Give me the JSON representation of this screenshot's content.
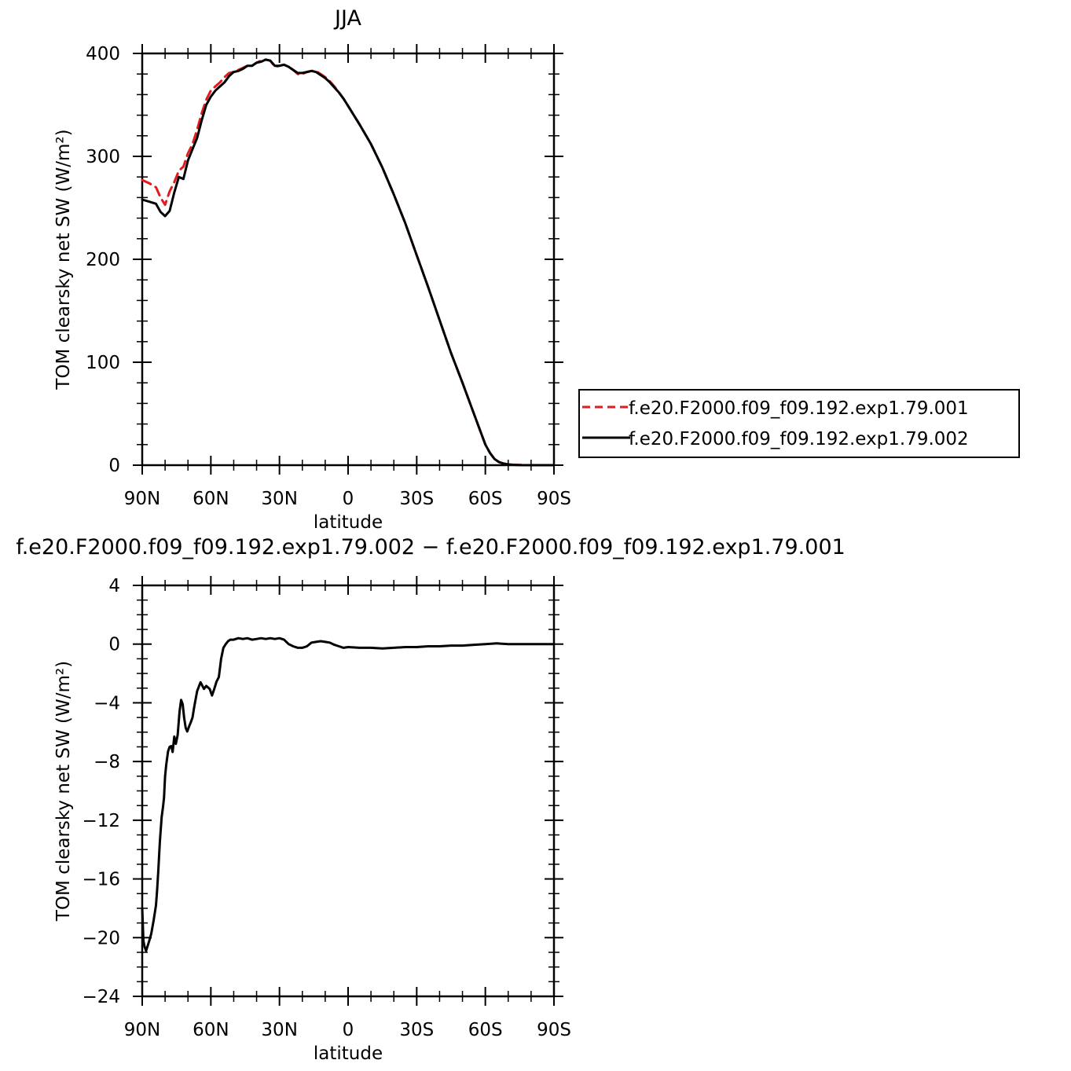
{
  "chart_data": [
    {
      "type": "line",
      "title": "JJA",
      "xlabel": "latitude",
      "ylabel": "TOM clearsky net SW (W/m²)",
      "x_ticks": [
        "90N",
        "60N",
        "30N",
        "0",
        "30S",
        "60S",
        "90S"
      ],
      "x_tick_values": [
        90,
        60,
        30,
        0,
        -30,
        -60,
        -90
      ],
      "xlim": [
        90,
        -90
      ],
      "y_ticks": [
        "0",
        "100",
        "200",
        "300",
        "400"
      ],
      "y_tick_values": [
        0,
        100,
        200,
        300,
        400
      ],
      "ylim": [
        0,
        400
      ],
      "grid": false,
      "legend_position": "right",
      "series": [
        {
          "name": "f.e20.F2000.f09_f09.192.exp1.79.001",
          "color": "#e41a1c",
          "dash": "dashed",
          "x": [
            90,
            87,
            84,
            82,
            80,
            78,
            76,
            74,
            72,
            70,
            68,
            66,
            64,
            62,
            60,
            58,
            56,
            54,
            52,
            50,
            48,
            46,
            44,
            42,
            40,
            38,
            36,
            34,
            32,
            30,
            28,
            26,
            24,
            22,
            20,
            18,
            16,
            14,
            12,
            10,
            8,
            6,
            4,
            2,
            0,
            -5,
            -10,
            -15,
            -20,
            -25,
            -30,
            -35,
            -40,
            -45,
            -50,
            -55,
            -60,
            -62,
            -64,
            -66,
            -68,
            -70,
            -72,
            -74,
            -76,
            -80,
            -85,
            -90
          ],
          "y": [
            277,
            274,
            270,
            260,
            253,
            266,
            275,
            286,
            290,
            303,
            312,
            326,
            342,
            355,
            364,
            368,
            372,
            377,
            381,
            382,
            384,
            386,
            388,
            388,
            391,
            393,
            394,
            393,
            387,
            388,
            389,
            387,
            384,
            380,
            380,
            382,
            383,
            383,
            380,
            377,
            373,
            368,
            362,
            356,
            349,
            331,
            312,
            289,
            263,
            235,
            204,
            173,
            141,
            109,
            80,
            50,
            20,
            12,
            6,
            3,
            1.5,
            0.8,
            0.4,
            0.2,
            0.1,
            0,
            0,
            0
          ]
        },
        {
          "name": "f.e20.F2000.f09_f09.192.exp1.79.002",
          "color": "#000000",
          "dash": "solid",
          "x": [
            90,
            87,
            84,
            82,
            80,
            78,
            76,
            74,
            72,
            70,
            68,
            66,
            64,
            62,
            60,
            58,
            56,
            54,
            52,
            50,
            48,
            46,
            44,
            42,
            40,
            38,
            36,
            34,
            32,
            30,
            28,
            26,
            24,
            22,
            20,
            18,
            16,
            14,
            12,
            10,
            8,
            6,
            4,
            2,
            0,
            -5,
            -10,
            -15,
            -20,
            -25,
            -30,
            -35,
            -40,
            -45,
            -50,
            -55,
            -60,
            -62,
            -64,
            -66,
            -68,
            -70,
            -72,
            -74,
            -76,
            -80,
            -85,
            -90
          ],
          "y": [
            258,
            256,
            254,
            246,
            242,
            247,
            265,
            280,
            278,
            296,
            307,
            318,
            335,
            350,
            358,
            364,
            368,
            372,
            378,
            382,
            383,
            385,
            388,
            388,
            391,
            392,
            394,
            393,
            388,
            388,
            389,
            387,
            384,
            381,
            381,
            382,
            383,
            382,
            379,
            376,
            372,
            367,
            362,
            356,
            349,
            331,
            312,
            289,
            263,
            235,
            204,
            173,
            141,
            109,
            80,
            50,
            20,
            12,
            6,
            3,
            1.5,
            0.8,
            0.4,
            0.2,
            0.1,
            0,
            0,
            0
          ]
        }
      ]
    },
    {
      "type": "line",
      "title": "f.e20.F2000.f09_f09.192.exp1.79.002 − f.e20.F2000.f09_f09.192.exp1.79.001",
      "xlabel": "latitude",
      "ylabel": "TOM clearsky net SW (W/m²)",
      "x_ticks": [
        "90N",
        "60N",
        "30N",
        "0",
        "30S",
        "60S",
        "90S"
      ],
      "x_tick_values": [
        90,
        60,
        30,
        0,
        -30,
        -60,
        -90
      ],
      "xlim": [
        90,
        -90
      ],
      "y_ticks": [
        "4",
        "0",
        "−4",
        "−8",
        "−12",
        "−16",
        "−20",
        "−24"
      ],
      "y_tick_values": [
        4,
        0,
        -4,
        -8,
        -12,
        -16,
        -20,
        -24
      ],
      "ylim": [
        -24,
        4
      ],
      "grid": false,
      "series": [
        {
          "color": "#000000",
          "dash": "solid",
          "x": [
            90,
            89.5,
            89,
            88.3,
            87.5,
            86.7,
            86,
            85,
            84,
            83.5,
            83,
            82.3,
            81.5,
            81,
            80.5,
            80,
            79.5,
            78.7,
            78,
            77.3,
            76.7,
            76,
            75.3,
            74.5,
            73.7,
            73,
            72.3,
            71.7,
            71,
            70.3,
            69.5,
            68.7,
            68,
            67.3,
            66,
            64.5,
            63,
            62,
            60.5,
            59.5,
            58.5,
            57.5,
            56.5,
            55.5,
            54.5,
            53.5,
            52.5,
            51.5,
            50,
            48,
            46,
            44,
            42,
            40,
            38,
            36,
            34,
            32,
            30,
            28,
            26,
            24,
            22,
            20,
            18,
            16,
            14,
            12,
            10,
            8,
            6,
            4,
            2,
            0,
            -5,
            -10,
            -15,
            -20,
            -25,
            -30,
            -35,
            -40,
            -45,
            -50,
            -55,
            -60,
            -65,
            -70,
            -75,
            -80,
            -85,
            -90
          ],
          "y": [
            -18,
            -20.2,
            -20.6,
            -20.9,
            -20.5,
            -20.1,
            -19.7,
            -18.8,
            -17.8,
            -16.8,
            -15.5,
            -13.5,
            -11.8,
            -11.2,
            -10.5,
            -9.0,
            -8.2,
            -7.3,
            -7.0,
            -6.95,
            -7.35,
            -6.3,
            -6.8,
            -6.2,
            -4.6,
            -3.8,
            -4.1,
            -5.0,
            -5.7,
            -5.95,
            -5.6,
            -5.3,
            -5.0,
            -4.3,
            -3.2,
            -2.6,
            -3.05,
            -2.85,
            -3.05,
            -3.5,
            -3.05,
            -2.55,
            -2.25,
            -1.0,
            -0.25,
            0.0,
            0.2,
            0.3,
            0.3,
            0.4,
            0.35,
            0.4,
            0.3,
            0.35,
            0.4,
            0.35,
            0.4,
            0.35,
            0.4,
            0.3,
            0.0,
            -0.15,
            -0.25,
            -0.25,
            -0.15,
            0.1,
            0.15,
            0.2,
            0.15,
            0.1,
            -0.05,
            -0.15,
            -0.25,
            -0.2,
            -0.25,
            -0.25,
            -0.3,
            -0.25,
            -0.2,
            -0.2,
            -0.15,
            -0.15,
            -0.1,
            -0.1,
            -0.05,
            0.0,
            0.05,
            0.0,
            0.0,
            0.0,
            0.0,
            0.0
          ]
        }
      ]
    }
  ]
}
